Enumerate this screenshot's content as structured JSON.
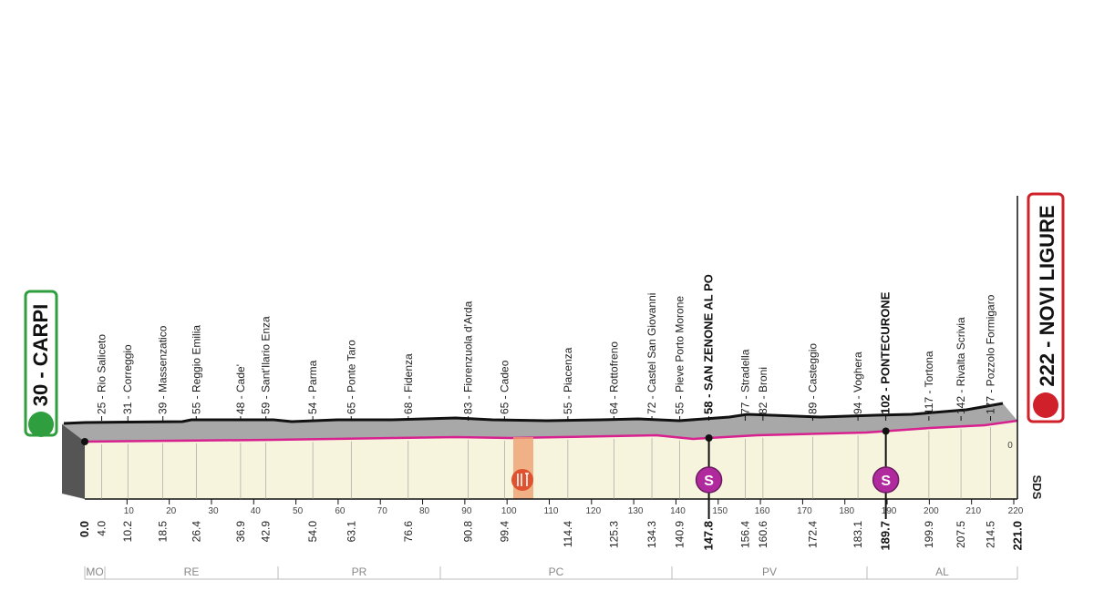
{
  "start": {
    "label": "30 - CARPI",
    "km": 0,
    "km_label": "0.0"
  },
  "finish": {
    "label": "222 - NOVI LIGURE",
    "km": 221,
    "km_label": "221.0"
  },
  "waypoints": [
    {
      "label": "25 - Rio Saliceto",
      "km": 4,
      "km_label": "4.0"
    },
    {
      "label": "31 - Correggio",
      "km": 10.2
    },
    {
      "label": "39 - Massenzatico",
      "km": 18.5
    },
    {
      "label": "55 - Reggio Emilia",
      "km": 26.4
    },
    {
      "label": "48 - Cade'",
      "km": 36.9
    },
    {
      "label": "59 - Sant'Ilario Enza",
      "km": 42.9
    },
    {
      "label": "54 - Parma",
      "km": 54,
      "km_label": "54.0"
    },
    {
      "label": "65 - Ponte Taro",
      "km": 63.1
    },
    {
      "label": "68 - Fidenza",
      "km": 76.6
    },
    {
      "label": "83 - Fiorenzuola d'Arda",
      "km": 90.8
    },
    {
      "label": "65 - Cadeo",
      "km": 99.4
    },
    {
      "label": "55 - Piacenza",
      "km": 114.4
    },
    {
      "label": "64 - Rottofreno",
      "km": 125.3
    },
    {
      "label": "72 - Castel San Giovanni",
      "km": 134.3
    },
    {
      "label": "55 - Pieve Porto Morone",
      "km": 140.9
    },
    {
      "label": "58 - SAN ZENONE AL PO",
      "km": 147.8,
      "bold": true,
      "sprint": true
    },
    {
      "label": "77 - Stradella",
      "km": 156.4
    },
    {
      "label": "82 - Broni",
      "km": 160.6
    },
    {
      "label": "89 - Casteggio",
      "km": 172.4
    },
    {
      "label": "94 - Voghera",
      "km": 183.1
    },
    {
      "label": "102 - PONTECURONE",
      "km": 189.7,
      "bold": true,
      "sprint": true
    },
    {
      "label": "117 - Tortona",
      "km": 199.9
    },
    {
      "label": "142 - Rivalta Scrivia",
      "km": 207.5
    },
    {
      "label": "177 - Pozzolo Formigaro",
      "km": 214.5
    }
  ],
  "sprint_icon": "S",
  "km_axis": {
    "lim": [
      0,
      220
    ],
    "ticks": [
      10,
      20,
      30,
      40,
      50,
      60,
      70,
      80,
      90,
      100,
      110,
      120,
      130,
      140,
      150,
      160,
      170,
      180,
      190,
      200,
      210,
      220
    ]
  },
  "altitude_zero": "0",
  "logo": "SDS",
  "provinces": [
    "MO",
    "RE",
    "PR",
    "PC",
    "PV",
    "AL"
  ]
}
